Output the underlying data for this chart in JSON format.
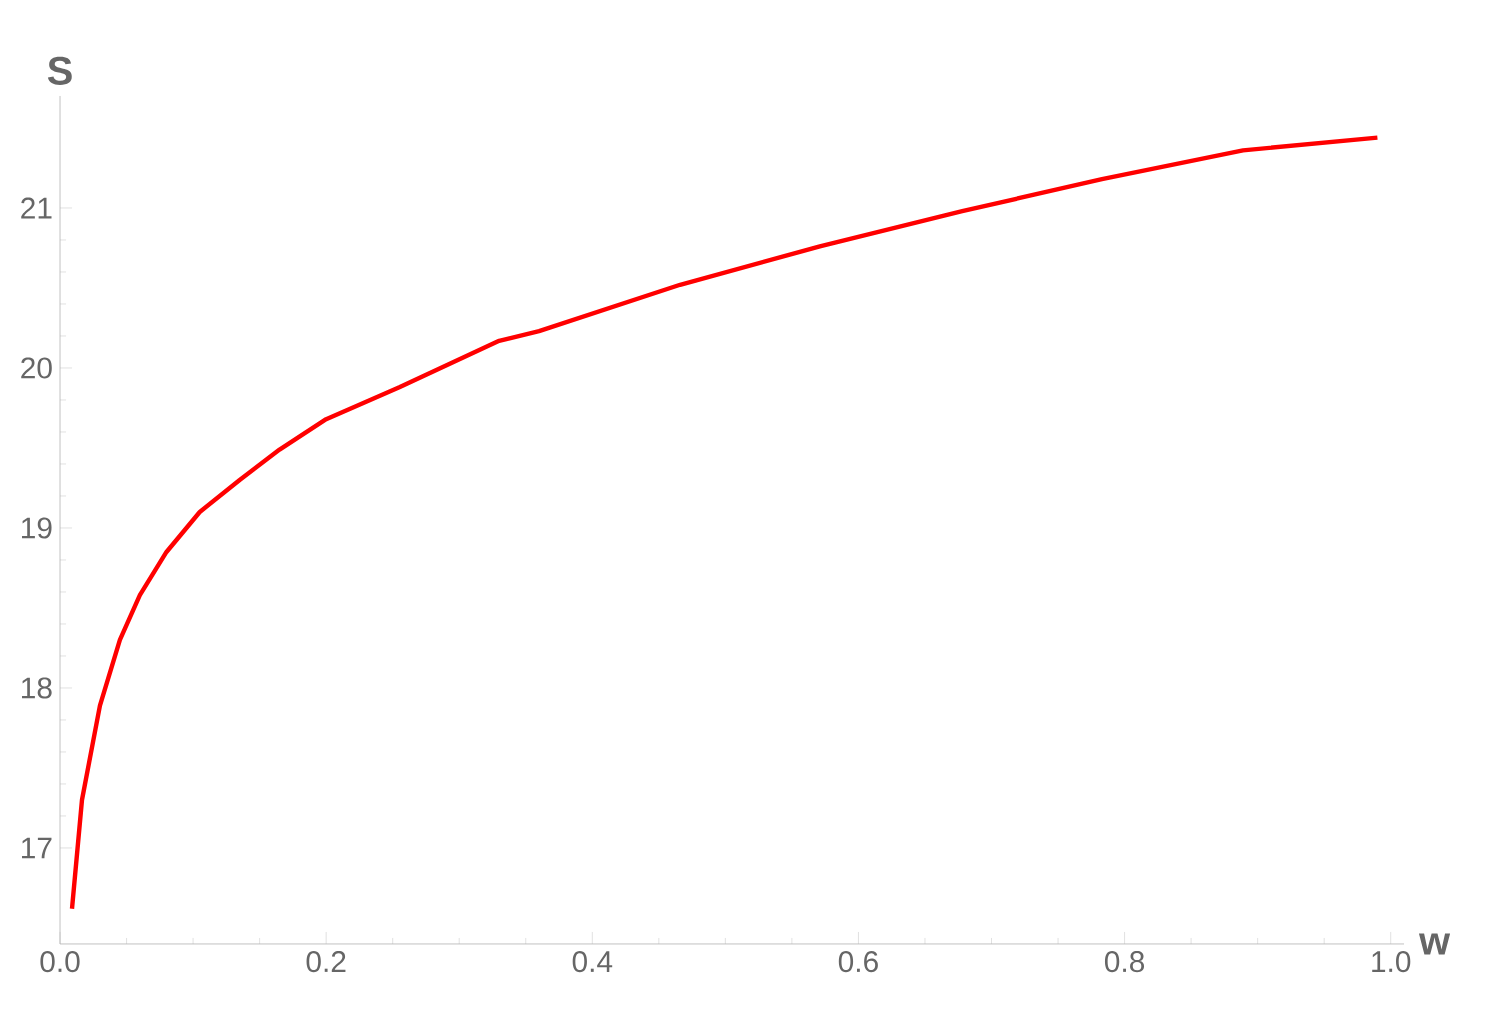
{
  "chart_data": {
    "type": "line",
    "xlabel": "w",
    "ylabel": "S",
    "color": "#ff0000",
    "x": [
      0.009,
      0.0165,
      0.03,
      0.045,
      0.06,
      0.08,
      0.105,
      0.135,
      0.165,
      0.2,
      0.255,
      0.33,
      0.36,
      0.466,
      0.571,
      0.678,
      0.783,
      0.889,
      0.99
    ],
    "values": [
      16.62,
      17.3,
      17.89,
      18.3,
      18.58,
      18.85,
      19.1,
      19.3,
      19.49,
      19.68,
      19.88,
      20.17,
      20.23,
      20.52,
      20.76,
      20.98,
      21.18,
      21.36,
      21.44
    ],
    "xlim": [
      0,
      1.01
    ],
    "ylim": [
      16.4,
      21.7
    ],
    "xticks": [
      {
        "value": 0,
        "label": "0.0"
      },
      0.2,
      0.4,
      0.6,
      0.8,
      {
        "value": 1,
        "label": "1.0"
      }
    ],
    "yticks": [
      17,
      18,
      19,
      20,
      21
    ]
  }
}
